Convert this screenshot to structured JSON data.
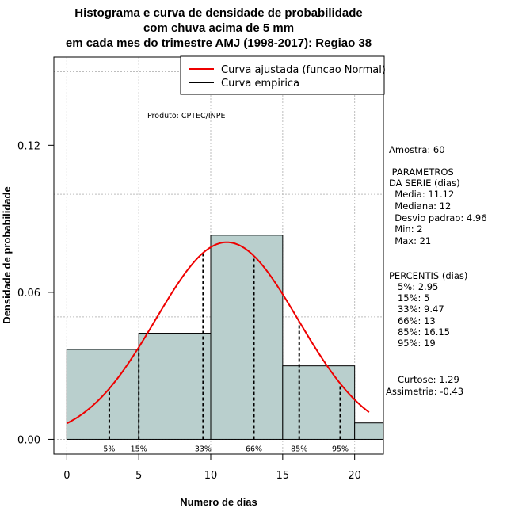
{
  "chart_data": {
    "type": "histogram",
    "title_lines": [
      "Histograma e curva de densidade de probabilidade",
      "com chuva acima de 5 mm",
      "em cada mes do trimestre AMJ (1998-2017): Regiao 38"
    ],
    "xlabel": "Numero de dias",
    "ylabel": "Densidade de probabilidade",
    "xlim": [
      -0.9,
      22
    ],
    "ylim": [
      -0.006,
      0.156
    ],
    "xticks": [
      0,
      5,
      10,
      15,
      20
    ],
    "yticks": [
      0.0,
      0.06,
      0.12
    ],
    "ytick_labels": [
      "0.00",
      "0.06",
      "0.12"
    ],
    "grid_y": [
      0.0,
      0.05,
      0.1,
      0.15
    ],
    "grid_x": [
      0,
      5,
      10,
      15,
      20
    ],
    "bins": [
      {
        "from": 0,
        "to": 5,
        "density": 0.0367
      },
      {
        "from": 5,
        "to": 10,
        "density": 0.0433
      },
      {
        "from": 10,
        "to": 15,
        "density": 0.0833
      },
      {
        "from": 15,
        "to": 20,
        "density": 0.03
      },
      {
        "from": 20,
        "to": 22,
        "density": 0.0067
      }
    ],
    "bar_color": "#b9cfcd",
    "normal_fit": {
      "mean": 11.12,
      "sd": 4.96,
      "x_range": [
        0,
        21
      ],
      "color": "#ee0000"
    },
    "percentile_lines": [
      {
        "label": "5%",
        "x": 2.95
      },
      {
        "label": "15%",
        "x": 5
      },
      {
        "label": "33%",
        "x": 9.47
      },
      {
        "label": "66%",
        "x": 13
      },
      {
        "label": "85%",
        "x": 16.15
      },
      {
        "label": "95%",
        "x": 19
      }
    ],
    "legend": {
      "position": "top-right",
      "entries": [
        {
          "label": "Curva ajustada (funcao Normal)",
          "color": "#ee0000"
        },
        {
          "label": "Curva empirica",
          "color": "#000000"
        }
      ]
    },
    "annotation": "Produto: CPTEC/INPE",
    "stats_lines": [
      "Amostra: 60",
      " PARAMETROS",
      "DA SERIE (dias)",
      "  Media: 11.12",
      "  Mediana: 12",
      "  Desvio padrao: 4.96",
      "  Min: 2",
      "  Max: 21",
      "PERCENTIS (dias)",
      "   5%: 2.95",
      "   15%: 5",
      "   33%: 9.47",
      "   66%: 13",
      "   85%: 16.15",
      "   95%: 19",
      "Curtose: 1.29",
      "Assimetria: -0.43"
    ]
  }
}
